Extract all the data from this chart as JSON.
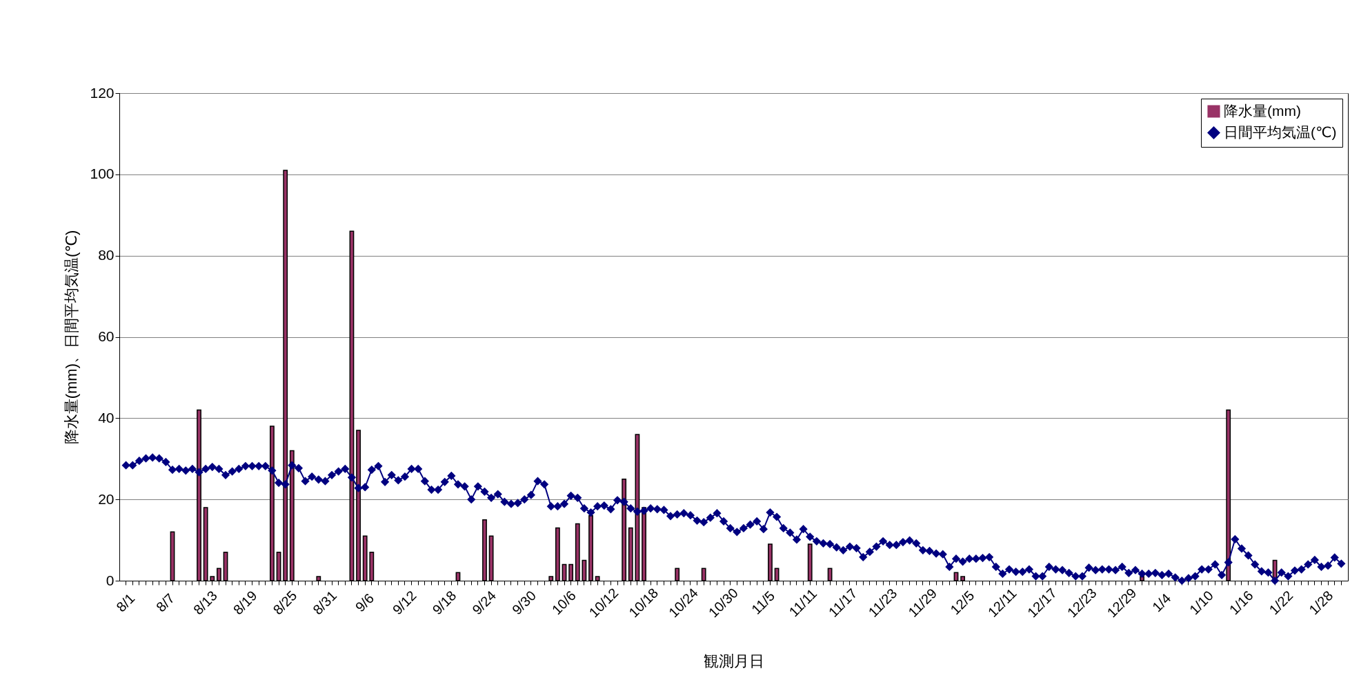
{
  "chart_data": {
    "type": "bar",
    "xlabel": "観測月日",
    "ylabel": "降水量(mm)、日間平均気温(℃)",
    "categories": [
      "8/1",
      null,
      null,
      null,
      null,
      null,
      "8/7",
      null,
      null,
      null,
      null,
      null,
      "8/13",
      null,
      null,
      null,
      null,
      null,
      "8/19",
      null,
      null,
      null,
      null,
      null,
      "8/25",
      null,
      null,
      null,
      null,
      null,
      "8/31",
      null,
      null,
      null,
      null,
      null,
      "9/6",
      null,
      null,
      null,
      null,
      null,
      "9/12",
      null,
      null,
      null,
      null,
      null,
      "9/18",
      null,
      null,
      null,
      null,
      null,
      "9/24",
      null,
      null,
      null,
      null,
      null,
      "9/30",
      null,
      null,
      null,
      null,
      null,
      "10/6",
      null,
      null,
      null,
      null,
      null,
      "10/12",
      null,
      null,
      null,
      null,
      null,
      "10/18",
      null,
      null,
      null,
      null,
      null,
      "10/24",
      null,
      null,
      null,
      null,
      null,
      "10/30",
      null,
      null,
      null,
      null,
      null,
      "11/5",
      null,
      null,
      null,
      null,
      null,
      "11/11",
      null,
      null,
      null,
      null,
      null,
      "11/17",
      null,
      null,
      null,
      null,
      null,
      "11/23",
      null,
      null,
      null,
      null,
      null,
      "11/29",
      null,
      null,
      null,
      null,
      null,
      "12/5",
      null,
      null,
      null,
      null,
      null,
      "12/11",
      null,
      null,
      null,
      null,
      null,
      "12/17",
      null,
      null,
      null,
      null,
      null,
      "12/23",
      null,
      null,
      null,
      null,
      null,
      "12/29",
      null,
      null,
      null,
      null,
      null,
      "1/4",
      null,
      null,
      null,
      null,
      null,
      "1/10",
      null,
      null,
      null,
      null,
      null,
      "1/16",
      null,
      null,
      null,
      null,
      null,
      "1/22",
      null,
      null,
      null,
      null,
      null,
      "1/28",
      null,
      null,
      null
    ],
    "series": [
      {
        "name": "降水量(mm)",
        "color": "#993366",
        "values": [
          null,
          null,
          null,
          null,
          null,
          null,
          null,
          12,
          null,
          null,
          null,
          42,
          18,
          1,
          3,
          7,
          null,
          null,
          null,
          null,
          null,
          null,
          38,
          7,
          101,
          32,
          null,
          null,
          null,
          1,
          null,
          null,
          null,
          null,
          86,
          37,
          11,
          7,
          null,
          null,
          null,
          null,
          null,
          null,
          null,
          null,
          null,
          null,
          null,
          null,
          2,
          null,
          null,
          null,
          15,
          11,
          null,
          null,
          null,
          null,
          null,
          null,
          null,
          null,
          1,
          13,
          4,
          4,
          14,
          5,
          16,
          1,
          null,
          null,
          null,
          25,
          13,
          36,
          18,
          null,
          null,
          null,
          null,
          3,
          null,
          null,
          null,
          3,
          null,
          null,
          null,
          null,
          null,
          null,
          null,
          null,
          null,
          9,
          3,
          null,
          null,
          null,
          null,
          9,
          null,
          null,
          3,
          null,
          null,
          null,
          null,
          null,
          null,
          null,
          null,
          null,
          null,
          null,
          null,
          null,
          null,
          null,
          null,
          null,
          null,
          2,
          1,
          null,
          null,
          null,
          null,
          null,
          null,
          null,
          null,
          null,
          null,
          null,
          null,
          null,
          null,
          null,
          null,
          null,
          null,
          null,
          null,
          null,
          null,
          null,
          null,
          null,
          null,
          1,
          null,
          null,
          null,
          null,
          null,
          null,
          null,
          null,
          null,
          null,
          null,
          null,
          42,
          null,
          null,
          null,
          null,
          null,
          null,
          5,
          null,
          null,
          null,
          null,
          null,
          null,
          null,
          null,
          null,
          null
        ]
      },
      {
        "name": "日間平均気温(℃)",
        "type": "line",
        "color": "#000080",
        "values": [
          28.4,
          28.4,
          29.5,
          30.1,
          30.3,
          30.1,
          29.2,
          27.3,
          27.5,
          27.1,
          27.5,
          26.7,
          27.5,
          28,
          27.5,
          26,
          26.9,
          27.5,
          28.2,
          28.2,
          28.2,
          28.2,
          27.1,
          24.1,
          23.7,
          28.4,
          27.7,
          24.5,
          25.6,
          24.9,
          24.5,
          26,
          26.9,
          27.5,
          25.4,
          22.8,
          23,
          27.3,
          28.2,
          24.3,
          26,
          24.7,
          25.6,
          27.5,
          27.5,
          24.5,
          22.4,
          22.4,
          24.3,
          25.8,
          23.7,
          23.2,
          20,
          23.2,
          21.9,
          20.4,
          21.3,
          19.4,
          18.9,
          19.1,
          20,
          21.1,
          24.5,
          23.7,
          18.3,
          18.3,
          18.9,
          20.9,
          20.4,
          17.8,
          16.8,
          18.3,
          18.5,
          17.6,
          19.8,
          19.4,
          17.8,
          17,
          17.2,
          17.8,
          17.6,
          17.4,
          15.9,
          16.3,
          16.6,
          16.1,
          14.8,
          14.4,
          15.5,
          16.6,
          14.6,
          12.9,
          12,
          12.9,
          13.8,
          14.6,
          12.7,
          16.8,
          15.7,
          12.9,
          11.8,
          10.1,
          12.7,
          10.8,
          9.7,
          9.2,
          9,
          8.2,
          7.5,
          8.4,
          8,
          5.8,
          7.1,
          8.4,
          9.7,
          8.8,
          8.8,
          9.5,
          9.9,
          9.2,
          7.5,
          7.3,
          6.7,
          6.5,
          3.4,
          5.4,
          4.7,
          5.4,
          5.4,
          5.6,
          5.8,
          3.4,
          1.7,
          2.8,
          2.2,
          2.2,
          2.8,
          1.1,
          1.1,
          3.4,
          2.8,
          2.6,
          1.9,
          1.1,
          1.1,
          3.2,
          2.6,
          2.8,
          2.8,
          2.6,
          3.4,
          1.9,
          2.6,
          1.7,
          1.7,
          1.9,
          1.4,
          1.7,
          0.8,
          0,
          0.6,
          1.1,
          2.8,
          2.8,
          4,
          1.4,
          4.5,
          10.2,
          7.9,
          6.2,
          4,
          2.3,
          2,
          0,
          2,
          1.1,
          2.5,
          2.8,
          4,
          5.1,
          3.4,
          3.7,
          5.7,
          4.2
        ]
      }
    ],
    "ylim": [
      0,
      120
    ],
    "yticks": [
      0,
      20,
      40,
      60,
      80,
      100,
      120
    ],
    "grid": "y",
    "legend": "top right",
    "marker": "diamond",
    "line_style": "solid"
  }
}
